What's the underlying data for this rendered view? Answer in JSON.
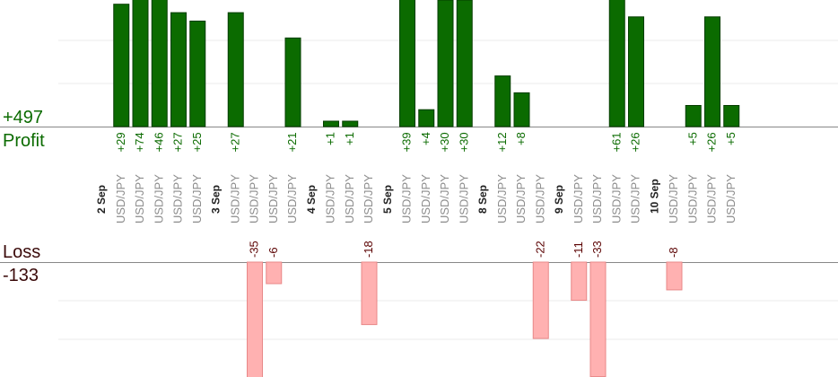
{
  "profit": {
    "label": "Profit",
    "total": "+497"
  },
  "loss": {
    "label": "Loss",
    "total": "-133"
  },
  "chart_data": {
    "type": "bar",
    "title": "",
    "xlabel": "",
    "ylabel": "",
    "days": [
      {
        "label": "2 Sep",
        "trades": [
          {
            "symbol": "USD/JPY",
            "value": 29
          },
          {
            "symbol": "USD/JPY",
            "value": 74
          },
          {
            "symbol": "USD/JPY",
            "value": 46
          },
          {
            "symbol": "USD/JPY",
            "value": 27
          },
          {
            "symbol": "USD/JPY",
            "value": 25
          }
        ]
      },
      {
        "label": "3 Sep",
        "trades": [
          {
            "symbol": "USD/JPY",
            "value": 27
          },
          {
            "symbol": "USD/JPY",
            "value": -35
          },
          {
            "symbol": "USD/JPY",
            "value": -6
          },
          {
            "symbol": "USD/JPY",
            "value": 21
          }
        ]
      },
      {
        "label": "4 Sep",
        "trades": [
          {
            "symbol": "USD/JPY",
            "value": 1
          },
          {
            "symbol": "USD/JPY",
            "value": 1
          },
          {
            "symbol": "USD/JPY",
            "value": -18
          }
        ]
      },
      {
        "label": "5 Sep",
        "trades": [
          {
            "symbol": "USD/JPY",
            "value": 39
          },
          {
            "symbol": "USD/JPY",
            "value": 4
          },
          {
            "symbol": "USD/JPY",
            "value": 30
          },
          {
            "symbol": "USD/JPY",
            "value": 30
          }
        ]
      },
      {
        "label": "8 Sep",
        "trades": [
          {
            "symbol": "USD/JPY",
            "value": 12
          },
          {
            "symbol": "USD/JPY",
            "value": 8
          },
          {
            "symbol": "USD/JPY",
            "value": -22
          }
        ]
      },
      {
        "label": "9 Sep",
        "trades": [
          {
            "symbol": "USD/JPY",
            "value": -11
          },
          {
            "symbol": "USD/JPY",
            "value": -33
          },
          {
            "symbol": "USD/JPY",
            "value": 61
          },
          {
            "symbol": "USD/JPY",
            "value": 26
          }
        ]
      },
      {
        "label": "10 Sep",
        "trades": [
          {
            "symbol": "USD/JPY",
            "value": -8
          },
          {
            "symbol": "USD/JPY",
            "value": 5
          },
          {
            "symbol": "USD/JPY",
            "value": 26
          },
          {
            "symbol": "USD/JPY",
            "value": 5
          }
        ]
      }
    ],
    "profit_scale_max": 30,
    "loss_scale_max": 30,
    "colors": {
      "profit_bar": "#0b6b00",
      "loss_bar": "#ffb1b1",
      "profit_text": "#0b6b00",
      "loss_text": "#5a0000"
    }
  }
}
